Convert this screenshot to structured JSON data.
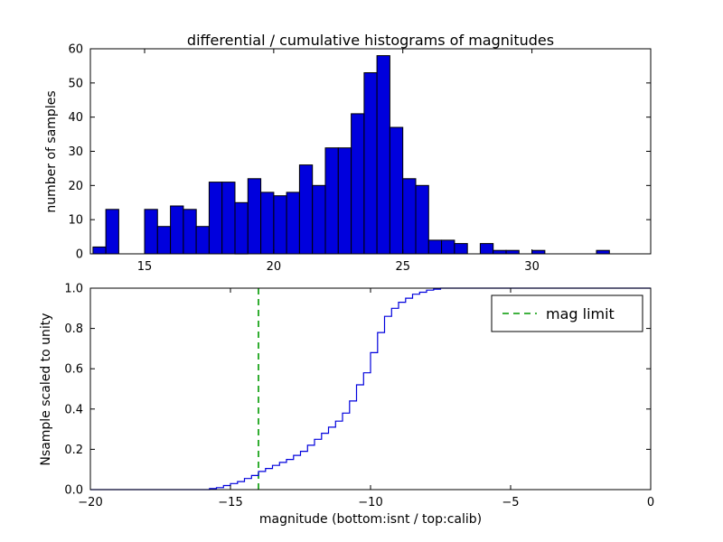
{
  "figure": {
    "background": "#ffffff",
    "frame_color": "#000000"
  },
  "chart_data": [
    {
      "type": "bar",
      "subtype": "histogram",
      "title": "differential / cumulative histograms of magnitudes",
      "ylabel": "number of samples",
      "bar_color": "#0000dd",
      "edge_color": "#000000",
      "bin_start": 13.0,
      "bin_width": 0.5,
      "counts": [
        2,
        13,
        0,
        0,
        13,
        8,
        14,
        13,
        8,
        21,
        21,
        15,
        22,
        18,
        17,
        18,
        26,
        20,
        31,
        31,
        41,
        53,
        58,
        37,
        22,
        20,
        4,
        4,
        3,
        0,
        3,
        1,
        1,
        0,
        1,
        0,
        0,
        0,
        0,
        1
      ],
      "xlim": [
        12.9,
        34.6
      ],
      "ylim": [
        0,
        60
      ],
      "grid": false,
      "xticks": [
        15,
        20,
        25,
        30
      ],
      "xtick_labels": [
        "15",
        "20",
        "25",
        "30"
      ],
      "yticks": [
        0,
        10,
        20,
        30,
        40,
        50,
        60
      ],
      "ytick_labels": [
        "0",
        "10",
        "20",
        "30",
        "40",
        "50",
        "60"
      ]
    },
    {
      "type": "line",
      "subtype": "cumulative-step",
      "xlabel": "magnitude (bottom:isnt / top:calib)",
      "ylabel": "Nsample scaled to unity",
      "line_color": "#0000dd",
      "steps": [
        [
          -15.75,
          0.005
        ],
        [
          -15.5,
          0.01
        ],
        [
          -15.25,
          0.02
        ],
        [
          -15.0,
          0.03
        ],
        [
          -14.75,
          0.04
        ],
        [
          -14.5,
          0.055
        ],
        [
          -14.25,
          0.07
        ],
        [
          -14.0,
          0.09
        ],
        [
          -13.75,
          0.105
        ],
        [
          -13.5,
          0.12
        ],
        [
          -13.25,
          0.135
        ],
        [
          -13.0,
          0.15
        ],
        [
          -12.75,
          0.17
        ],
        [
          -12.5,
          0.19
        ],
        [
          -12.25,
          0.22
        ],
        [
          -12.0,
          0.25
        ],
        [
          -11.75,
          0.28
        ],
        [
          -11.5,
          0.31
        ],
        [
          -11.25,
          0.34
        ],
        [
          -11.0,
          0.38
        ],
        [
          -10.75,
          0.44
        ],
        [
          -10.5,
          0.52
        ],
        [
          -10.25,
          0.58
        ],
        [
          -10.0,
          0.68
        ],
        [
          -9.75,
          0.78
        ],
        [
          -9.5,
          0.86
        ],
        [
          -9.25,
          0.9
        ],
        [
          -9.0,
          0.93
        ],
        [
          -8.75,
          0.95
        ],
        [
          -8.5,
          0.97
        ],
        [
          -8.25,
          0.98
        ],
        [
          -8.0,
          0.99
        ],
        [
          -7.75,
          0.995
        ],
        [
          -7.5,
          1.0
        ]
      ],
      "xlim": [
        -20,
        0
      ],
      "ylim": [
        0.0,
        1.0
      ],
      "grid": false,
      "xticks": [
        -20,
        -15,
        -10,
        -5,
        0
      ],
      "xtick_labels": [
        "−20",
        "−15",
        "−10",
        "−5",
        "0"
      ],
      "yticks": [
        0.0,
        0.2,
        0.4,
        0.6,
        0.8,
        1.0
      ],
      "ytick_labels": [
        "0.0",
        "0.2",
        "0.4",
        "0.6",
        "0.8",
        "1.0"
      ],
      "vline": {
        "x": -14,
        "color": "#009900",
        "style": "dashed",
        "label": "mag limit"
      },
      "legend": {
        "label": "mag limit",
        "position": "upper right"
      }
    }
  ]
}
